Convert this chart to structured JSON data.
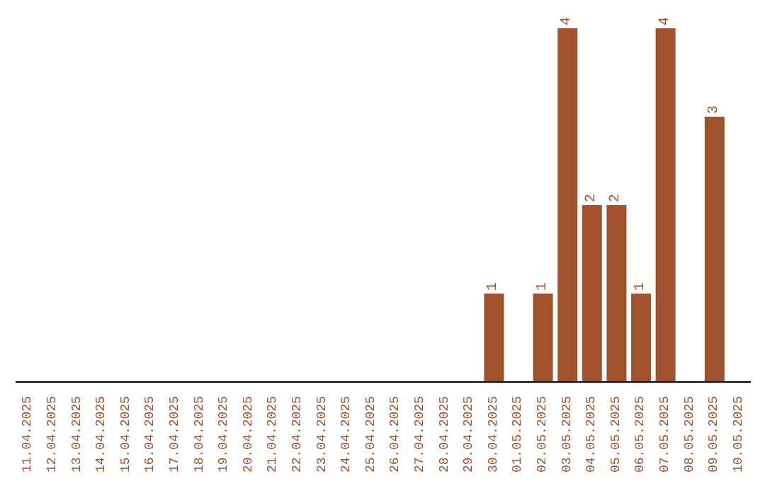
{
  "chart_data": {
    "type": "bar",
    "categories": [
      "11.04.2025",
      "12.04.2025",
      "13.04.2025",
      "14.04.2025",
      "15.04.2025",
      "16.04.2025",
      "17.04.2025",
      "18.04.2025",
      "19.04.2025",
      "20.04.2025",
      "21.04.2025",
      "22.04.2025",
      "23.04.2025",
      "24.04.2025",
      "25.04.2025",
      "26.04.2025",
      "27.04.2025",
      "28.04.2025",
      "29.04.2025",
      "30.04.2025",
      "01.05.2025",
      "02.05.2025",
      "03.05.2025",
      "04.05.2025",
      "05.05.2025",
      "06.05.2025",
      "07.05.2025",
      "08.05.2025",
      "09.05.2025",
      "10.05.2025"
    ],
    "values": [
      null,
      null,
      null,
      null,
      null,
      null,
      null,
      null,
      null,
      null,
      null,
      null,
      null,
      null,
      null,
      null,
      null,
      null,
      null,
      1,
      null,
      1,
      4,
      2,
      2,
      1,
      4,
      null,
      3,
      null
    ],
    "data_labels": true,
    "color": "#a0522d",
    "grid": false,
    "legend": false
  }
}
